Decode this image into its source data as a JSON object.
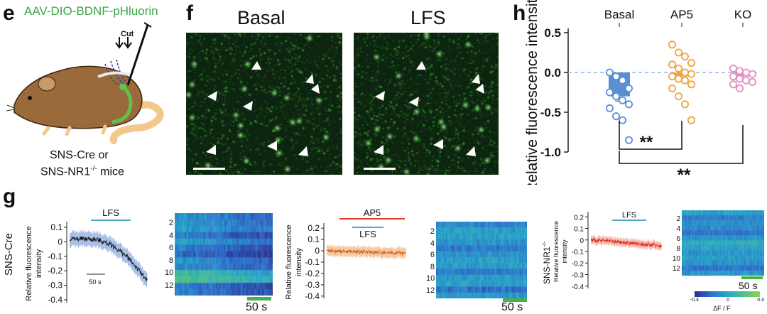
{
  "panels": {
    "e": {
      "label": "e",
      "virus": "AAV-DIO-BDNF-pHluorin",
      "cut": "Cut",
      "mice_line1": "SNS-Cre or",
      "mice_line2_a": "SNS-NR1",
      "mice_line2_sup": "-/-",
      "mice_line2_b": " mice",
      "colors": {
        "virus": "#3aa845",
        "mouse": "#9b6a3a",
        "tail": "#f2c98a"
      }
    },
    "f": {
      "label": "f",
      "left_title": "Basal",
      "right_title": "LFS",
      "left_arrowheads": 7,
      "right_arrowheads": 7
    },
    "g": {
      "label": "g",
      "trace1": {
        "row_label": "SNS-Cre",
        "ylabel_1": "Relative fluorescence",
        "ylabel_2": "intensity",
        "bar_label": "LFS",
        "scale_label": "50 s",
        "yticks": [
          "0.1",
          "0",
          "-0.1",
          "-0.2",
          "-0.3",
          "-0.4"
        ],
        "color": "#1a1a1a",
        "band": "#a8bfe8"
      },
      "trace2": {
        "ylabel_1": "Relative fluorescence",
        "ylabel_2": "intensity",
        "bar_top_label": "AP5",
        "bar_label": "LFS",
        "yticks": [
          "0.2",
          "0.1",
          "0",
          "-0.1",
          "-0.2",
          "-0.3",
          "-0.4"
        ],
        "color": "#c8641c",
        "band": "#f6c9a2"
      },
      "trace3": {
        "row_label_a": "SNS-NR1",
        "row_label_sup": "-/-",
        "ylabel_1": "Relative fluorescence",
        "ylabel_2": "intensity",
        "bar_label": "LFS",
        "yticks": [
          "0.2",
          "0.1",
          "0",
          "-0.1",
          "-0.2",
          "-0.3",
          "-0.4"
        ],
        "color": "#e0291c",
        "band": "#f6b9b2"
      },
      "heatmap1": {
        "rows": [
          "2",
          "4",
          "6",
          "8",
          "10",
          "12"
        ],
        "time_label": "50 s"
      },
      "heatmap2": {
        "rows": [
          "2",
          "4",
          "6",
          "8",
          "10",
          "12"
        ],
        "time_label": "50 s"
      },
      "heatmap3": {
        "rows": [
          "2",
          "4",
          "6",
          "8",
          "10",
          "12"
        ],
        "time_label": "50 s"
      },
      "colorbar": {
        "ticks": [
          "-0.4",
          "0",
          "0.4"
        ],
        "label": "ΔF / F"
      }
    },
    "h": {
      "label": "h",
      "sig_label": "**"
    }
  },
  "chart_data": {
    "type": "scatter",
    "categories": [
      "Basal",
      "AP5",
      "KO"
    ],
    "ylabel": "Relative fluorescence intensity",
    "ylim": [
      -1.0,
      0.5
    ],
    "yticks": [
      "0.5",
      "0.0",
      "-0.5",
      "-1.0"
    ],
    "reference_line_y": 0,
    "series": [
      {
        "name": "Basal",
        "color": "#5a8fd6",
        "mean": -0.3,
        "sem": 0.06,
        "values": [
          0.0,
          -0.05,
          -0.1,
          -0.2,
          -0.25,
          -0.3,
          -0.35,
          -0.4,
          -0.45,
          -0.55,
          -0.6,
          -0.85
        ]
      },
      {
        "name": "AP5",
        "color": "#f0a43a",
        "mean": -0.05,
        "sem": 0.05,
        "values": [
          0.35,
          0.25,
          0.2,
          0.12,
          0.1,
          0.05,
          0.0,
          -0.02,
          -0.05,
          -0.08,
          -0.1,
          -0.15,
          -0.2,
          -0.3,
          -0.4,
          -0.6
        ]
      },
      {
        "name": "KO",
        "color": "#e68ec4",
        "mean": -0.05,
        "sem": 0.03,
        "values": [
          0.05,
          0.02,
          0.0,
          -0.02,
          -0.05,
          -0.08,
          -0.1,
          -0.12,
          -0.15,
          -0.2
        ]
      }
    ],
    "annotations": [
      "**",
      "**"
    ]
  }
}
